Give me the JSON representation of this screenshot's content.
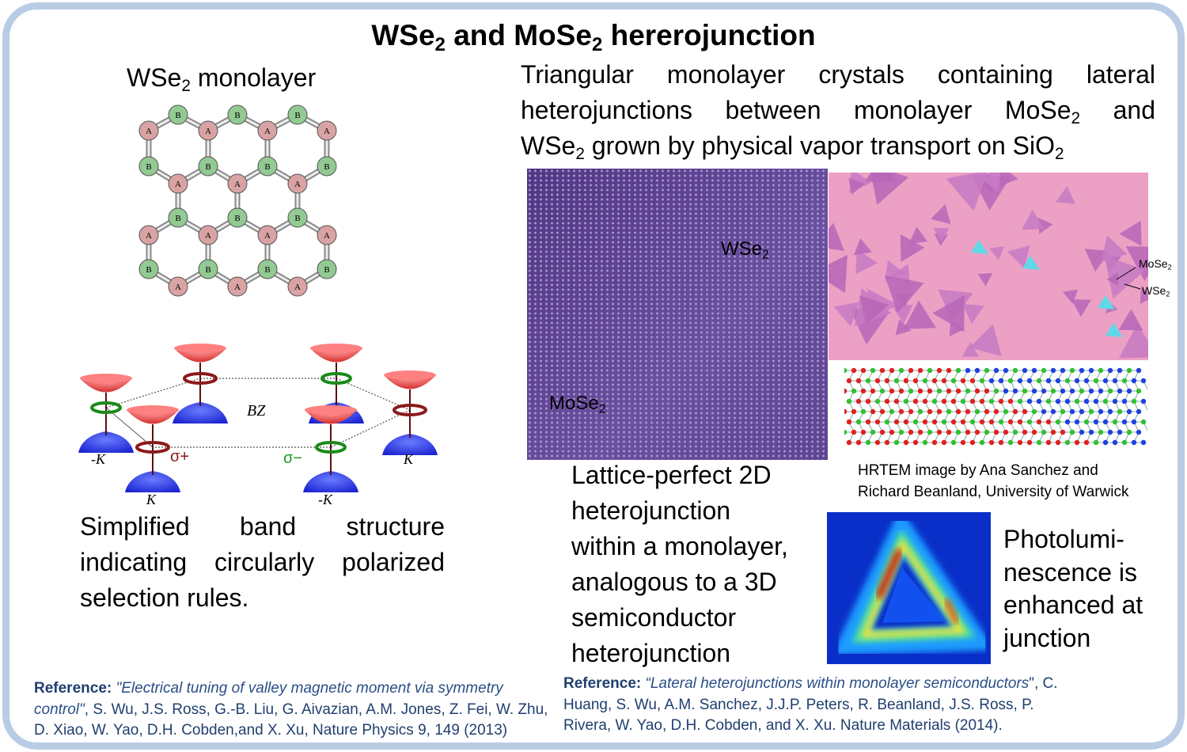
{
  "title": {
    "a": "WSe",
    "sub1": "2",
    "b": " and MoSe",
    "sub2": "2",
    "c": " hererojunction"
  },
  "lattice": {
    "title_a": "WSe",
    "title_sub": "2",
    "title_b": " monolayer",
    "atom_a": "A",
    "atom_b": "B",
    "color_a": "#d9a3a3",
    "color_b": "#93c993"
  },
  "band": {
    "bz": "BZ",
    "minus_k": "-K",
    "k": "K",
    "sigma_plus": "σ+",
    "sigma_minus": "σ−",
    "caption": [
      "Simplified band structure",
      "indicating circularly polarized",
      "selection rules."
    ]
  },
  "intro": {
    "line1": "Triangular monolayer crystals containing lateral",
    "line2a": "heterojunctions between monolayer MoSe",
    "line2sub": "2",
    "line2b": " and",
    "line3a": "WSe",
    "line3sub": "2",
    "line3b": " grown by physical vapor transport on SiO",
    "line3sub2": "2"
  },
  "hrtem": {
    "wse2": "WSe",
    "mose2": "MoSe",
    "sub": "2"
  },
  "optical": {
    "mose2": "MoSe",
    "wse2": "WSe",
    "sub": "2"
  },
  "credit": [
    "HRTEM image by Ana Sanchez and",
    "Richard Beanland, University of Warwick"
  ],
  "lattice_caption": [
    "Lattice-perfect 2D",
    "heterojunction",
    "within a monolayer,",
    "analogous to a 3D",
    "semiconductor",
    "heterojunction"
  ],
  "pl_caption": [
    "Photolumi-",
    "nescence is",
    "enhanced at",
    "junction"
  ],
  "ref1": {
    "label": "Reference:",
    "title": " \"Electrical tuning of valley magnetic moment via symmetry control\"",
    "rest": ", S. Wu, J.S. Ross, G.-B. Liu, G. Aivazian, A.M. Jones, Z. Fei, W. Zhu, D. Xiao, W. Yao, D.H. Cobden,and X. Xu, Nature Physics 9, 149 (2013)"
  },
  "ref2": {
    "label": "Reference:",
    "title": " “Lateral heterojunctions within monolayer semiconductors",
    "rest": "\", C. Huang, S. Wu, A.M. Sanchez, J.J.P. Peters, R. Beanland, J.S. Ross, P. Rivera, W. Yao, D.H. Cobden, and X. Xu. Nature Materials (2014)."
  }
}
